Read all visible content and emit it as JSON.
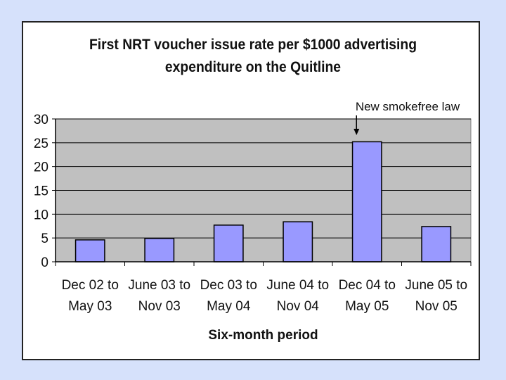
{
  "chart_data": {
    "type": "bar",
    "title_lines": [
      "First NRT voucher issue rate per $1000 advertising",
      "expenditure on the Quitline"
    ],
    "categories": [
      [
        "Dec 02 to",
        "May 03"
      ],
      [
        "June 03 to",
        "Nov 03"
      ],
      [
        "Dec 03 to",
        "May 04"
      ],
      [
        "June 04 to",
        "Nov 04"
      ],
      [
        "Dec 04 to",
        "May 05"
      ],
      [
        "June 05 to",
        "Nov 05"
      ]
    ],
    "values": [
      4.6,
      4.9,
      7.7,
      8.4,
      25.2,
      7.4
    ],
    "xlabel": "Six-month period",
    "ylabel": "",
    "ylim": [
      0,
      30
    ],
    "yticks": [
      0,
      5,
      10,
      15,
      20,
      25,
      30
    ],
    "grid": true,
    "annotation": {
      "text": "New smokefree law",
      "category_index": 4
    },
    "colors": {
      "bar": "#9999ff",
      "plot_bg": "#c0c0c0",
      "page_bg": "#d6e1fb"
    }
  }
}
